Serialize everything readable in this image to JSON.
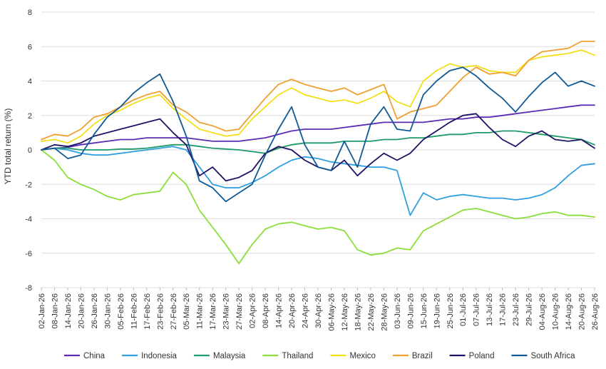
{
  "chart_data": {
    "type": "line",
    "title": "",
    "ylabel": "YTD total return (%)",
    "xlabel": "",
    "ylim": [
      -8,
      8
    ],
    "yticks": [
      8,
      6,
      4,
      2,
      0,
      -2,
      -4,
      -6,
      -8
    ],
    "grid": "horizontal",
    "legend": "bottom",
    "x": [
      "02-Jan-26",
      "08-Jan-26",
      "14-Jan-26",
      "20-Jan-26",
      "26-Jan-26",
      "30-Jan-26",
      "05-Feb-26",
      "11-Feb-26",
      "17-Feb-26",
      "23-Feb-26",
      "27-Feb-26",
      "05-Mar-26",
      "11-Mar-26",
      "17-Mar-26",
      "23-Mar-26",
      "27-Mar-26",
      "02-Apr-26",
      "08-Apr-26",
      "14-Apr-26",
      "20-Apr-26",
      "24-Apr-26",
      "30-Apr-26",
      "06-May-26",
      "12-May-26",
      "18-May-26",
      "22-May-26",
      "28-May-26",
      "03-Jun-26",
      "09-Jun-26",
      "15-Jun-26",
      "19-Jun-26",
      "25-Jun-26",
      "01-Jul-26",
      "07-Jul-26",
      "13-Jul-26",
      "17-Jul-26",
      "23-Jul-26",
      "29-Jul-26",
      "04-Aug-26",
      "10-Aug-26",
      "14-Aug-26",
      "20-Aug-26",
      "26-Aug-26"
    ],
    "series": [
      {
        "name": "China",
        "color": "#5b2bb5",
        "values": [
          0.0,
          0.1,
          0.15,
          0.3,
          0.4,
          0.5,
          0.6,
          0.6,
          0.7,
          0.7,
          0.7,
          0.7,
          0.6,
          0.5,
          0.5,
          0.5,
          0.6,
          0.7,
          0.9,
          1.1,
          1.2,
          1.2,
          1.2,
          1.3,
          1.4,
          1.5,
          1.6,
          1.6,
          1.6,
          1.6,
          1.7,
          1.8,
          1.8,
          1.9,
          1.9,
          2.0,
          2.1,
          2.2,
          2.3,
          2.4,
          2.5,
          2.6,
          2.6
        ]
      },
      {
        "name": "Indonesia",
        "color": "#2f9fe0",
        "values": [
          0.0,
          0.1,
          0.0,
          -0.2,
          -0.3,
          -0.3,
          -0.2,
          -0.1,
          0.0,
          0.1,
          0.2,
          0.0,
          -1.0,
          -2.0,
          -2.2,
          -2.2,
          -1.9,
          -1.5,
          -1.0,
          -0.6,
          -0.4,
          -0.5,
          -0.7,
          -0.8,
          -0.9,
          -1.0,
          -1.0,
          -1.2,
          -3.8,
          -2.5,
          -2.9,
          -2.7,
          -2.6,
          -2.7,
          -2.8,
          -2.8,
          -2.9,
          -2.8,
          -2.6,
          -2.2,
          -1.5,
          -0.9,
          -0.8
        ]
      },
      {
        "name": "Malaysia",
        "color": "#1e9b68",
        "values": [
          0.0,
          0.1,
          0.1,
          0.0,
          0.0,
          0.0,
          0.05,
          0.05,
          0.1,
          0.2,
          0.3,
          0.3,
          0.2,
          0.1,
          0.05,
          0.0,
          -0.1,
          -0.2,
          0.1,
          0.3,
          0.4,
          0.4,
          0.4,
          0.5,
          0.5,
          0.5,
          0.6,
          0.6,
          0.7,
          0.7,
          0.8,
          0.9,
          0.9,
          1.0,
          1.0,
          1.1,
          1.1,
          1.0,
          0.9,
          0.8,
          0.7,
          0.6,
          0.3
        ]
      },
      {
        "name": "Thailand",
        "color": "#8cde3a",
        "values": [
          0.0,
          -0.6,
          -1.6,
          -2.0,
          -2.3,
          -2.7,
          -2.9,
          -2.6,
          -2.5,
          -2.4,
          -1.3,
          -2.0,
          -3.5,
          -4.5,
          -5.5,
          -6.6,
          -5.5,
          -4.6,
          -4.3,
          -4.2,
          -4.4,
          -4.6,
          -4.5,
          -4.7,
          -5.8,
          -6.1,
          -6.0,
          -5.7,
          -5.8,
          -4.7,
          -4.3,
          -3.9,
          -3.5,
          -3.4,
          -3.6,
          -3.8,
          -4.0,
          -3.9,
          -3.7,
          -3.6,
          -3.8,
          -3.8,
          -3.9
        ]
      },
      {
        "name": "Mexico",
        "color": "#f2df1a",
        "values": [
          0.5,
          0.6,
          0.4,
          0.8,
          1.5,
          2.0,
          2.3,
          2.7,
          3.0,
          3.2,
          2.4,
          1.8,
          1.2,
          1.0,
          0.8,
          0.9,
          1.8,
          2.5,
          3.2,
          3.6,
          3.2,
          3.0,
          2.8,
          2.9,
          2.7,
          3.0,
          3.4,
          2.8,
          2.5,
          4.0,
          4.6,
          5.0,
          4.8,
          4.9,
          4.6,
          4.5,
          4.5,
          5.2,
          5.4,
          5.5,
          5.6,
          5.8,
          5.5
        ]
      },
      {
        "name": "Brazil",
        "color": "#f0a030",
        "values": [
          0.6,
          0.9,
          0.8,
          1.2,
          1.9,
          2.1,
          2.5,
          2.9,
          3.2,
          3.4,
          2.6,
          2.2,
          1.6,
          1.4,
          1.1,
          1.2,
          2.1,
          3.0,
          3.8,
          4.1,
          3.8,
          3.6,
          3.4,
          3.6,
          3.2,
          3.5,
          3.8,
          1.8,
          2.2,
          2.4,
          2.6,
          3.4,
          4.2,
          4.8,
          4.4,
          4.5,
          4.3,
          5.2,
          5.7,
          5.8,
          5.9,
          6.3,
          6.3
        ]
      },
      {
        "name": "Poland",
        "color": "#1e1466",
        "values": [
          0.0,
          0.3,
          0.2,
          0.4,
          0.8,
          1.0,
          1.2,
          1.4,
          1.6,
          1.8,
          1.0,
          0.3,
          -1.5,
          -1.0,
          -1.8,
          -1.6,
          -1.2,
          -0.2,
          0.2,
          0.0,
          -0.6,
          -1.0,
          -1.2,
          -0.6,
          -1.5,
          -0.8,
          -0.2,
          -0.6,
          -0.2,
          0.6,
          1.1,
          1.6,
          2.0,
          2.1,
          1.3,
          0.6,
          0.2,
          0.8,
          1.1,
          0.6,
          0.5,
          0.6,
          0.1
        ]
      },
      {
        "name": "South Africa",
        "color": "#0f5a96",
        "values": [
          0.0,
          0.1,
          -0.5,
          -0.3,
          0.9,
          1.9,
          2.5,
          3.3,
          3.9,
          4.4,
          2.8,
          0.8,
          -1.8,
          -2.2,
          -3.0,
          -2.5,
          -2.0,
          -0.3,
          1.2,
          2.5,
          0.3,
          -1.0,
          -1.2,
          0.5,
          -1.0,
          1.5,
          2.5,
          1.2,
          1.1,
          3.2,
          4.0,
          4.6,
          4.8,
          4.3,
          3.6,
          3.0,
          2.2,
          3.1,
          3.9,
          4.5,
          3.7,
          4.0,
          3.7
        ]
      }
    ]
  }
}
